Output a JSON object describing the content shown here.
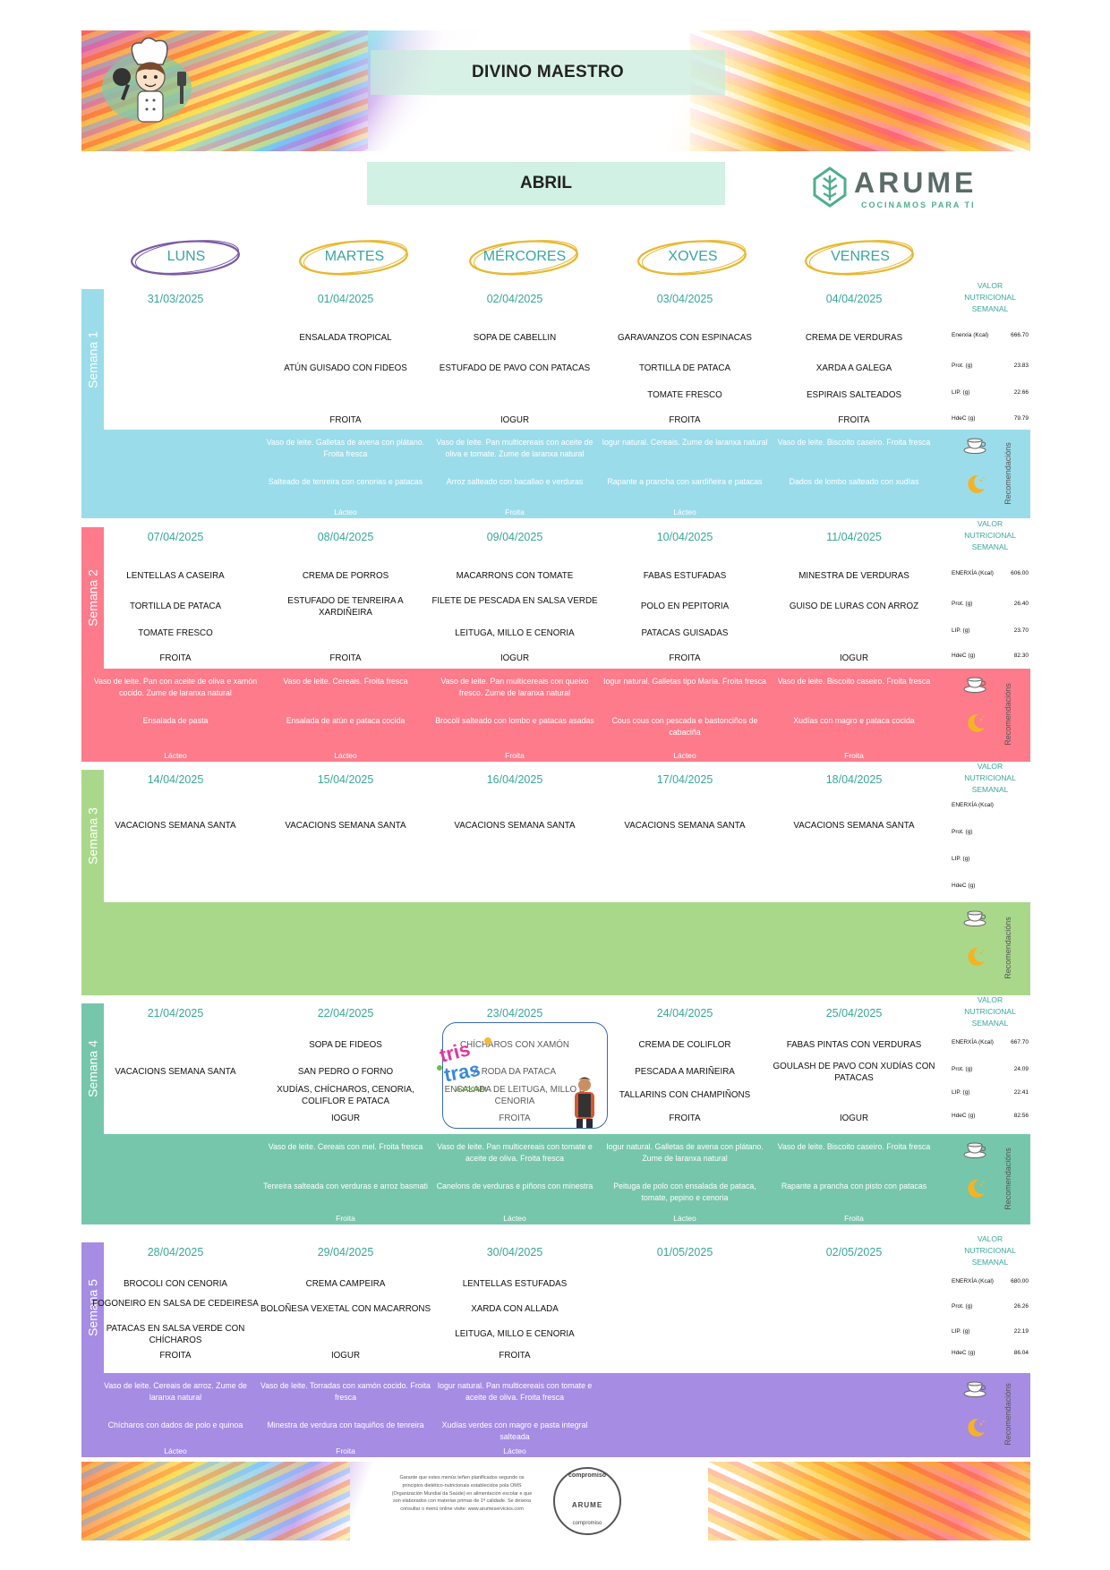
{
  "header": {
    "school": "DIVINO MAESTRO",
    "month": "ABRIL",
    "brand": "ARUME",
    "brand_tagline": "COCINAMOS PARA TI"
  },
  "days": [
    "LUNS",
    "MARTES",
    "MÉRCORES",
    "XOVES",
    "VENRES"
  ],
  "day_colors": [
    "#7b5aa6",
    "#e8b730",
    "#e8b730",
    "#e8b730",
    "#e8b730"
  ],
  "nutrition_title_lines": [
    "VALOR",
    "NUTRICIONAL",
    "SEMANAL"
  ],
  "recommendations_label": "Recomendacións",
  "weeks": [
    {
      "label": "Semana 1",
      "color": "#9bdcea",
      "dates": [
        "31/03/2025",
        "01/04/2025",
        "02/04/2025",
        "03/04/2025",
        "04/04/2025"
      ],
      "menu": [
        [
          "",
          "",
          "",
          ""
        ],
        [
          "ENSALADA TROPICAL",
          "ATÚN GUISADO CON FIDEOS",
          "",
          "FROITA"
        ],
        [
          "SOPA DE CABELLIN",
          "ESTUFADO DE PAVO CON PATACAS",
          "",
          "IOGUR"
        ],
        [
          "GARAVANZOS CON ESPINACAS",
          "TORTILLA DE PATACA",
          "TOMATE FRESCO",
          "FROITA"
        ],
        [
          "CREMA DE VERDURAS",
          "XARDA A GALEGA",
          "ESPIRAIS SALTEADOS",
          "FROITA"
        ]
      ],
      "nutrition": [
        [
          "Enerxía (Kcal)",
          "666.70"
        ],
        [
          "Prot. (g)",
          "23.83"
        ],
        [
          "LIP. (g)",
          "22.66"
        ],
        [
          "HdeC (g)",
          "79.79"
        ]
      ],
      "breakfast": [
        "",
        "Vaso de leite. Galletas de avena con plátano. Froita fresca",
        "Vaso de leite. Pan multicereais con aceite de oliva e tomate. Zume de laranxa natural",
        "Iogur natural. Cereais. Zume de laranxa natural",
        "Vaso de leite. Biscoito caseiro. Froita fresca"
      ],
      "dinner": [
        "",
        "Salteado de tenreira con cenorias e patacas",
        "Arroz salteado con bacallao e verduras",
        "Rapante a prancha con xardiñeira e patacas",
        "Dados de lombo salteado con xudías"
      ],
      "dessert": [
        "",
        "Lácteo",
        "Froita",
        "Lácteo",
        ""
      ]
    },
    {
      "label": "Semana 2",
      "color": "#fd7b8b",
      "dates": [
        "07/04/2025",
        "08/04/2025",
        "09/04/2025",
        "10/04/2025",
        "11/04/2025"
      ],
      "menu": [
        [
          "LENTELLAS A CASEIRA",
          "TORTILLA DE PATACA",
          "TOMATE FRESCO",
          "FROITA"
        ],
        [
          "CREMA DE PORROS",
          "ESTUFADO DE TENREIRA A XARDIÑEIRA",
          "",
          "FROITA"
        ],
        [
          "MACARRONS CON TOMATE",
          "FILETE DE PESCADA EN SALSA VERDE",
          "LEITUGA, MILLO E CENORIA",
          "IOGUR"
        ],
        [
          "FABAS ESTUFADAS",
          "POLO EN PEPITORIA",
          "PATACAS GUISADAS",
          "FROITA"
        ],
        [
          "MINESTRA DE VERDURAS",
          "GUISO DE LURAS CON ARROZ",
          "",
          "IOGUR"
        ]
      ],
      "nutrition": [
        [
          "ENERXÍA (Kcal)",
          "606.00"
        ],
        [
          "Prot. (g)",
          "26.40"
        ],
        [
          "LIP. (g)",
          "23.70"
        ],
        [
          "HdeC (g)",
          "82.30"
        ]
      ],
      "breakfast": [
        "Vaso de leite. Pan con aceite de oliva e xamón cocido. Zume de laranxa natural",
        "Vaso de leite. Cereais. Froita fresca",
        "Vaso de leite. Pan multicereais con queixo fresco. Zume de laranxa natural",
        "Iogur natural. Galletas tipo María. Froita fresca",
        "Vaso de leite. Biscoito caseiro. Froita fresca"
      ],
      "dinner": [
        "Ensalada de pasta",
        "Ensalada de atún e pataca cocida",
        "Brocolí salteado con lombo e patacas asadas",
        "Cous cous con pescada e bastonciños de cabaciña",
        "Xudías con magro e pataca cocida"
      ],
      "dessert": [
        "Lácteo",
        "Lácteo",
        "Froita",
        "Lácteo",
        "Froita"
      ]
    },
    {
      "label": "Semana 3",
      "color": "#a9d88b",
      "dates": [
        "14/04/2025",
        "15/04/2025",
        "16/04/2025",
        "17/04/2025",
        "18/04/2025"
      ],
      "menu": [
        [
          "",
          "VACACIONS SEMANA SANTA",
          "",
          ""
        ],
        [
          "",
          "VACACIONS SEMANA SANTA",
          "",
          ""
        ],
        [
          "",
          "VACACIONS SEMANA SANTA",
          "",
          ""
        ],
        [
          "",
          "VACACIONS SEMANA SANTA",
          "",
          ""
        ],
        [
          "",
          "VACACIONS SEMANA SANTA",
          "",
          ""
        ]
      ],
      "nutrition": [
        [
          "ENERXÍA (Kcal)",
          ""
        ],
        [
          "Prot. (g)",
          ""
        ],
        [
          "LIP. (g)",
          ""
        ],
        [
          "HdeC (g)",
          ""
        ]
      ],
      "breakfast": [
        "",
        "",
        "",
        "",
        ""
      ],
      "dinner": [
        "",
        "",
        "",
        "",
        ""
      ],
      "dessert": [
        "",
        "",
        "",
        "",
        ""
      ]
    },
    {
      "label": "Semana 4",
      "color": "#76c6ac",
      "dates": [
        "21/04/2025",
        "22/04/2025",
        "23/04/2025",
        "24/04/2025",
        "25/04/2025"
      ],
      "menu": [
        [
          "",
          "VACACIONS SEMANA SANTA",
          "",
          ""
        ],
        [
          "SOPA DE FIDEOS",
          "SAN PEDRO O FORNO",
          "XUDÍAS, CHÍCHAROS, CENORIA, COLIFLOR E PATACA",
          "IOGUR"
        ],
        [
          "CHÍCHAROS CON XAMÓN",
          "A RODA DA PATACA",
          "ENSALADA DE LEITUGA, MILLO E CENORIA",
          "FROITA"
        ],
        [
          "CREMA DE COLIFLOR",
          "PESCADA A MARIÑEIRA",
          "TALLARINS CON CHAMPIÑONS",
          "FROITA"
        ],
        [
          "FABAS PINTAS CON VERDURAS",
          "GOULASH DE PAVO CON XUDÍAS CON PATACAS",
          "",
          "IOGUR"
        ]
      ],
      "nutrition": [
        [
          "ENERXÍA (Kcal)",
          "667.70"
        ],
        [
          "Prot. (g)",
          "24.09"
        ],
        [
          "LIP. (g)",
          "22.41"
        ],
        [
          "HdeC (g)",
          "82.56"
        ]
      ],
      "breakfast": [
        "",
        "Vaso de leite. Cereais con mel. Froita fresca",
        "Vaso de leite. Pan multicereais con tomate e aceite de oliva. Froita fresca",
        "Iogur natural. Galletas de avena con plátano. Zume de laranxa natural",
        "Vaso de leite. Biscoito caseiro. Froita fresca"
      ],
      "dinner": [
        "",
        "Tenreira salteada con verduras e arroz basmati",
        "Canelons de verduras e piñons con minestra",
        "Peituga de polo con ensalada de pataca, tomate, pepino e cenoria",
        "Rapante a prancha con pisto con patacas"
      ],
      "dessert": [
        "",
        "Froita",
        "Lácteo",
        "Lácteo",
        "Froita"
      ]
    },
    {
      "label": "Semana 5",
      "color": "#a68ce3",
      "dates": [
        "28/04/2025",
        "29/04/2025",
        "30/04/2025",
        "01/05/2025",
        "02/05/2025"
      ],
      "menu": [
        [
          "BROCOLI CON CENORIA",
          "FOGONEIRO EN SALSA DE CEDEIRESA",
          "PATACAS EN SALSA VERDE CON CHÍCHAROS",
          "FROITA"
        ],
        [
          "CREMA CAMPEIRA",
          "BOLOÑESA VEXETAL CON MACARRONS",
          "",
          "IOGUR"
        ],
        [
          "LENTELLAS ESTUFADAS",
          "XARDA CON ALLADA",
          "LEITUGA, MILLO E CENORIA",
          "FROITA"
        ],
        [
          "",
          "",
          "",
          ""
        ],
        [
          "",
          "",
          "",
          ""
        ]
      ],
      "nutrition": [
        [
          "ENERXÍA (Kcal)",
          "680.00"
        ],
        [
          "Prot. (g)",
          "26.26"
        ],
        [
          "LIP. (g)",
          "22.19"
        ],
        [
          "HdeC (g)",
          "86.04"
        ]
      ],
      "breakfast": [
        "Vaso de leite. Cereais de arroz. Zume de laranxa natural",
        "Vaso de leite. Torradas con xamón cocido. Froita fresca",
        "Iogur natural. Pan multicereais con tomate e aceite de oliva. Froita fresca",
        "",
        ""
      ],
      "dinner": [
        "Chícharos con dados de polo e quinoa",
        "Minestra de verdura con taquiños de tenreira",
        "Xudías verdes con magro e pasta integral salteada",
        "",
        ""
      ],
      "dessert": [
        "Lácteo",
        "Froita",
        "Lácteo",
        "",
        ""
      ]
    }
  ],
  "footer": {
    "text": "Garante que estes menús teñen planificados segundo os principios dietético-nutricionais establecidos pola OMS (Organización Mundial da Saúde) en alimentación escolar e que son elaborados con materias primas de 1ª calidade. Se desexa consultar o menú online visite: www.arumeservicios.com",
    "seal_top": "compromiso",
    "seal_brand": "ARUME",
    "seal_bottom": "compromiso"
  },
  "tristres": {
    "line1": "tris",
    "line2": "tras",
    "line3": "A XOGAR!"
  }
}
